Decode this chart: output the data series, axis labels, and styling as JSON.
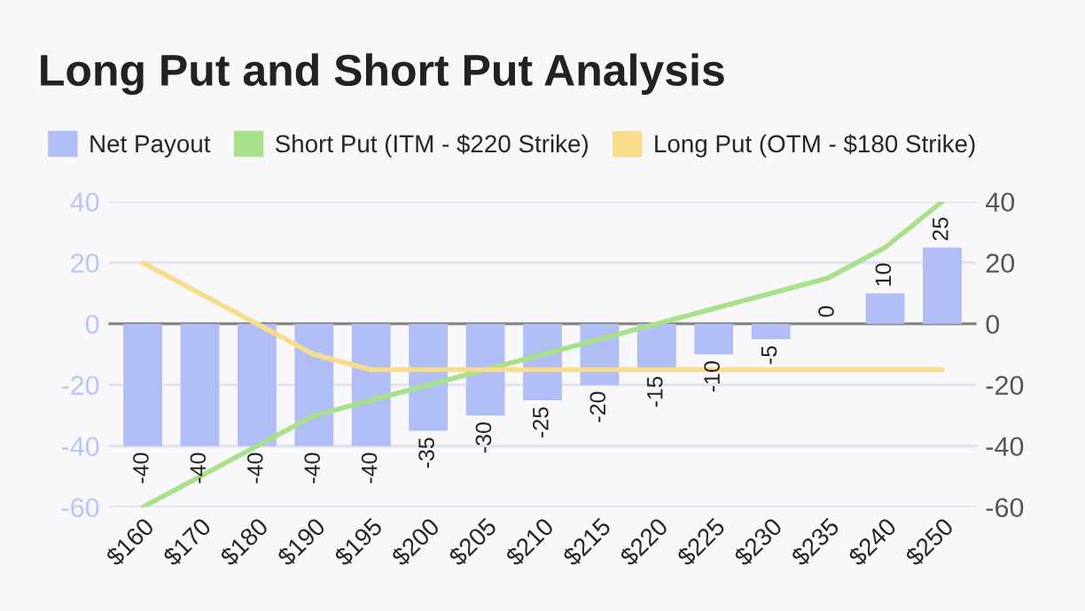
{
  "chart_data": {
    "type": "bar",
    "title": "Long Put and Short Put Analysis",
    "categories": [
      "$160",
      "$170",
      "$180",
      "$190",
      "$195",
      "$200",
      "$205",
      "$210",
      "$215",
      "$220",
      "$225",
      "$230",
      "$235",
      "$240",
      "$250"
    ],
    "series": [
      {
        "name": "Net Payout",
        "color": "#b0bef5",
        "values": [
          -40,
          -40,
          -40,
          -40,
          -40,
          -35,
          -30,
          -25,
          -20,
          -15,
          -10,
          -5,
          0,
          10,
          25
        ],
        "data_labels": true
      },
      {
        "name": "Short Put (ITM - $220 Strike)",
        "type": "line",
        "color": "#a8e08c",
        "values": [
          -60,
          -50,
          -40,
          -30,
          -25,
          -20,
          -15,
          -10,
          -5,
          0,
          5,
          10,
          15,
          25,
          40
        ]
      },
      {
        "name": "Long Put (OTM - $180 Strike)",
        "type": "line",
        "color": "#f8dc8c",
        "values": [
          20,
          10,
          0,
          -10,
          -15,
          -15,
          -15,
          -15,
          -15,
          -15,
          -15,
          -15,
          -15,
          -15,
          -15
        ]
      }
    ],
    "ylim": [
      -60,
      40
    ],
    "yticks": [
      -60,
      -40,
      -20,
      0,
      20,
      40
    ],
    "y2lim": [
      -60,
      40
    ],
    "y2ticks": [
      -60,
      -40,
      -20,
      0,
      20,
      40
    ],
    "grid": "y",
    "legend": "top left",
    "marker": "none",
    "line_style": "solid"
  }
}
